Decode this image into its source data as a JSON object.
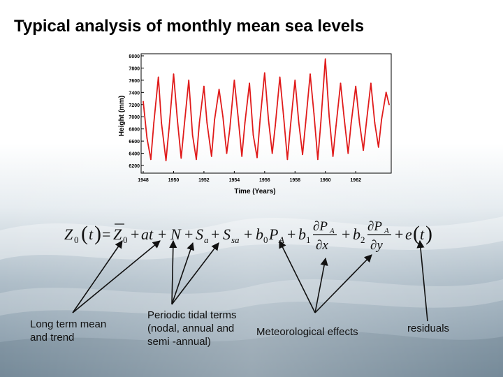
{
  "slide": {
    "title": "Typical analysis of monthly mean sea levels"
  },
  "colors": {
    "series": "#e01b1b",
    "axis": "#000000",
    "background_sea": "#b9c6cf"
  },
  "chart_data": {
    "type": "line",
    "xlabel": "Time (Years)",
    "ylabel": "Height (mm)",
    "xlim": [
      1948,
      1964.2
    ],
    "ylim": [
      6200,
      8000
    ],
    "xticks": [
      "1948",
      "1950",
      "1952",
      "1954",
      "1956",
      "1958",
      "1960",
      "1962"
    ],
    "yticks": [
      "8000",
      "7800",
      "7600",
      "7400",
      "7200",
      "7000",
      "6800",
      "6600",
      "6400",
      "6200"
    ],
    "grid": false,
    "series": [
      {
        "points": [
          [
            1948.0,
            7250
          ],
          [
            1948.25,
            6650
          ],
          [
            1948.5,
            6300
          ],
          [
            1948.7,
            6900
          ],
          [
            1949.0,
            7650
          ],
          [
            1949.2,
            6900
          ],
          [
            1949.5,
            6280
          ],
          [
            1949.7,
            6800
          ],
          [
            1950.0,
            7700
          ],
          [
            1950.25,
            6950
          ],
          [
            1950.5,
            6320
          ],
          [
            1950.7,
            6850
          ],
          [
            1951.0,
            7600
          ],
          [
            1951.25,
            6700
          ],
          [
            1951.5,
            6300
          ],
          [
            1951.7,
            6900
          ],
          [
            1952.0,
            7500
          ],
          [
            1952.2,
            6900
          ],
          [
            1952.5,
            6350
          ],
          [
            1952.7,
            6950
          ],
          [
            1953.0,
            7450
          ],
          [
            1953.25,
            7000
          ],
          [
            1953.5,
            6400
          ],
          [
            1953.7,
            6800
          ],
          [
            1954.0,
            7600
          ],
          [
            1954.25,
            7000
          ],
          [
            1954.5,
            6350
          ],
          [
            1954.7,
            6900
          ],
          [
            1955.0,
            7550
          ],
          [
            1955.25,
            6700
          ],
          [
            1955.5,
            6330
          ],
          [
            1955.7,
            6950
          ],
          [
            1956.0,
            7720
          ],
          [
            1956.25,
            6950
          ],
          [
            1956.5,
            6400
          ],
          [
            1956.7,
            6850
          ],
          [
            1957.0,
            7650
          ],
          [
            1957.25,
            7000
          ],
          [
            1957.5,
            6300
          ],
          [
            1957.7,
            6850
          ],
          [
            1958.0,
            7600
          ],
          [
            1958.25,
            6900
          ],
          [
            1958.5,
            6380
          ],
          [
            1958.7,
            6900
          ],
          [
            1959.0,
            7700
          ],
          [
            1959.25,
            7050
          ],
          [
            1959.5,
            6300
          ],
          [
            1959.7,
            6900
          ],
          [
            1960.0,
            7950
          ],
          [
            1960.25,
            7000
          ],
          [
            1960.5,
            6350
          ],
          [
            1960.7,
            6850
          ],
          [
            1961.0,
            7550
          ],
          [
            1961.25,
            6950
          ],
          [
            1961.5,
            6400
          ],
          [
            1961.7,
            6900
          ],
          [
            1962.0,
            7500
          ],
          [
            1962.25,
            6900
          ],
          [
            1962.5,
            6450
          ],
          [
            1962.7,
            6900
          ],
          [
            1963.0,
            7550
          ],
          [
            1963.25,
            6900
          ],
          [
            1963.5,
            6500
          ],
          [
            1963.7,
            6950
          ],
          [
            1964.0,
            7400
          ],
          [
            1964.2,
            7200
          ]
        ]
      }
    ]
  },
  "labels": {
    "trend": "Long term mean and trend",
    "tidal": "Periodic tidal terms (nodal, annual and semi -annual)",
    "meteorological": "Meteorological effects",
    "residuals": "residuals"
  }
}
